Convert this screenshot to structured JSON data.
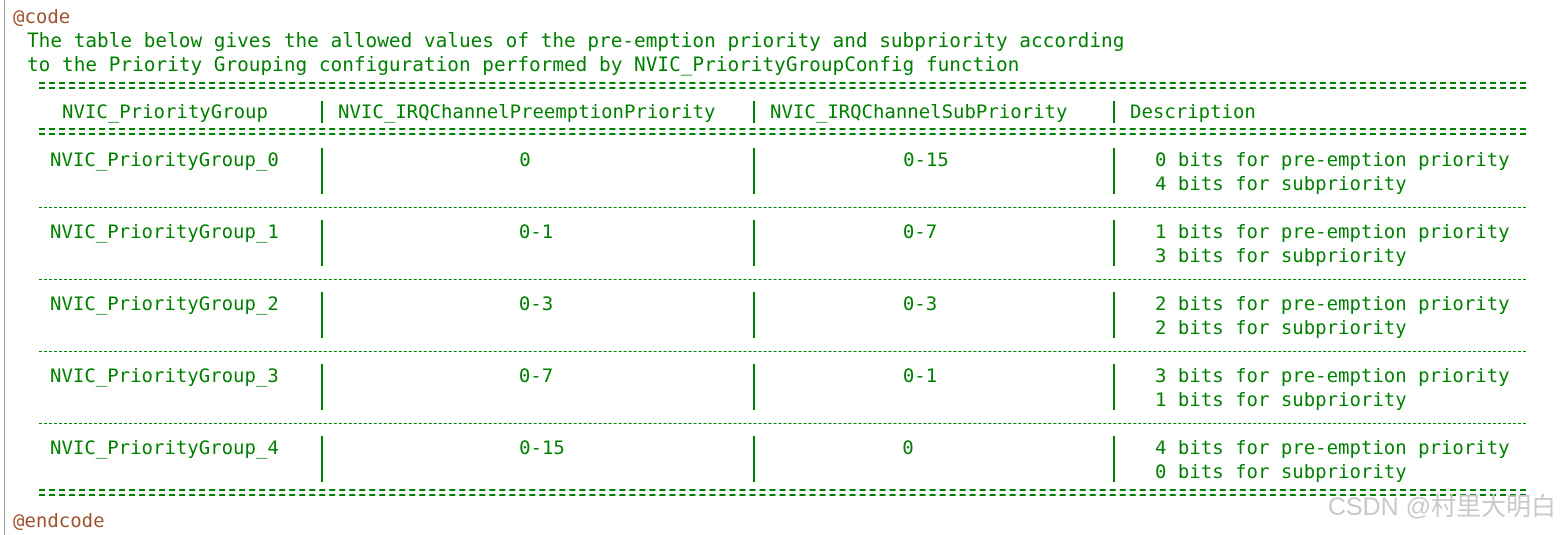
{
  "doc": {
    "code_open": "@code",
    "intro_line1": "The table below gives the allowed values of the pre-emption priority and subpriority according",
    "intro_line2": "to the Priority Grouping configuration performed by NVIC_PriorityGroupConfig function",
    "code_close": "@endcode"
  },
  "table": {
    "headers": [
      "NVIC_PriorityGroup",
      "NVIC_IRQChannelPreemptionPriority",
      "NVIC_IRQChannelSubPriority",
      "Description"
    ],
    "rows": [
      {
        "group": "NVIC_PriorityGroup_0",
        "preemption": "0",
        "sub": "0-15",
        "desc1": "0 bits for pre-emption priority",
        "desc2": "4 bits for subpriority"
      },
      {
        "group": "NVIC_PriorityGroup_1",
        "preemption": "0-1",
        "sub": "0-7",
        "desc1": "1 bits for pre-emption priority",
        "desc2": "3 bits for subpriority"
      },
      {
        "group": "NVIC_PriorityGroup_2",
        "preemption": "0-3",
        "sub": "0-3",
        "desc1": "2 bits for pre-emption priority",
        "desc2": "2 bits for subpriority"
      },
      {
        "group": "NVIC_PriorityGroup_3",
        "preemption": "0-7",
        "sub": "0-1",
        "desc1": "3 bits for pre-emption priority",
        "desc2": "1 bits for subpriority"
      },
      {
        "group": "NVIC_PriorityGroup_4",
        "preemption": "0-15",
        "sub": "0",
        "desc1": "4 bits for pre-emption priority",
        "desc2": "0 bits for subpriority"
      }
    ]
  },
  "watermark": "CSDN @村里大明白",
  "colors": {
    "comment": "#008000",
    "keyword": "#a0522d",
    "watermark": "#c9c9c9"
  }
}
